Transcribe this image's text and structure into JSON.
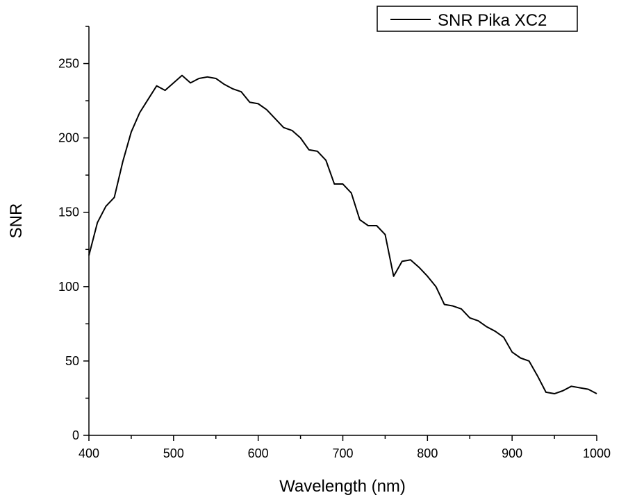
{
  "chart_data": {
    "type": "line",
    "title": "",
    "xlabel": "Wavelength (nm)",
    "ylabel": "SNR",
    "xlim": [
      400,
      1000
    ],
    "ylim": [
      0,
      275
    ],
    "xticks": [
      "400",
      "500",
      "600",
      "700",
      "800",
      "900",
      "1000"
    ],
    "yticks": [
      "0",
      "50",
      "100",
      "150",
      "200",
      "250"
    ],
    "grid": false,
    "legend": "top-right",
    "series": [
      {
        "name": "SNR Pika XC2",
        "color": "#000000",
        "x": [
          400,
          410,
          420,
          430,
          440,
          450,
          460,
          470,
          480,
          490,
          500,
          510,
          520,
          530,
          540,
          550,
          560,
          570,
          580,
          590,
          600,
          610,
          620,
          630,
          640,
          650,
          660,
          670,
          680,
          690,
          700,
          710,
          720,
          730,
          740,
          750,
          760,
          770,
          780,
          790,
          800,
          810,
          820,
          830,
          840,
          850,
          860,
          870,
          880,
          890,
          900,
          910,
          920,
          930,
          940,
          950,
          960,
          970,
          980,
          990,
          1000
        ],
        "y": [
          121,
          143,
          154,
          160,
          184,
          204,
          217,
          226,
          235,
          232,
          237,
          242,
          237,
          240,
          241,
          240,
          236,
          233,
          231,
          224,
          223,
          219,
          213,
          207,
          205,
          200,
          192,
          191,
          185,
          169,
          169,
          163,
          145,
          141,
          141,
          135,
          107,
          117,
          118,
          113,
          107,
          100,
          88,
          87,
          85,
          79,
          77,
          73,
          70,
          66,
          56,
          52,
          50,
          40,
          29,
          28,
          30,
          33,
          32,
          31,
          28
        ]
      }
    ]
  }
}
